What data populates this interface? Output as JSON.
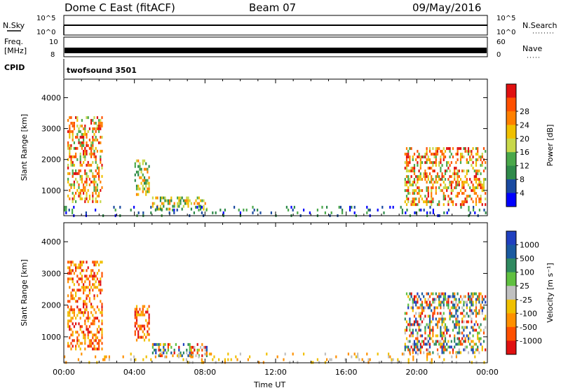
{
  "header": {
    "title": "Dome C East (fitACF)",
    "beam": "Beam 07",
    "date": "09/May/2016"
  },
  "strips": {
    "nsky_label": "N.Sky",
    "nsky_ticks": [
      "10^5",
      "10^0"
    ],
    "nsearch_label": "N.Search",
    "freq_label_1": "Freq.",
    "freq_label_2": "[MHz]",
    "freq_ticks": [
      "10",
      "8"
    ],
    "nave_ticks": [
      "60",
      "0"
    ],
    "nave_label": "Nave",
    "cpid_label": "CPID",
    "cpid_value": "twofsound 3501"
  },
  "chart_data": [
    {
      "type": "heatmap",
      "name": "power",
      "ylabel": "Slant Range [km]",
      "yticks": [
        1000,
        2000,
        3000,
        4000
      ],
      "ylim": [
        180,
        4600
      ],
      "xlim": [
        0,
        24
      ],
      "colorbar_label": "Power [dB]",
      "colorbar_ticks": [
        "4",
        "8",
        "12",
        "16",
        "20",
        "24",
        "28"
      ],
      "colors": [
        "#0000ff",
        "#1a4aa0",
        "#2f8a4a",
        "#4aa84a",
        "#c8d84a",
        "#f0c000",
        "#ff8000",
        "#ff5000",
        "#e01010"
      ],
      "echo_regions": [
        {
          "t": [
            0.2,
            2.2
          ],
          "r": [
            600,
            3400
          ],
          "level": "high"
        },
        {
          "t": [
            4.0,
            4.8
          ],
          "r": [
            900,
            2000
          ],
          "level": "mid"
        },
        {
          "t": [
            5.0,
            8.1
          ],
          "r": [
            400,
            800
          ],
          "level": "mid"
        },
        {
          "t": [
            19.3,
            23.9
          ],
          "r": [
            500,
            2400
          ],
          "level": "high"
        },
        {
          "t": [
            0,
            24
          ],
          "r": [
            180,
            500
          ],
          "level": "low"
        }
      ]
    },
    {
      "type": "heatmap",
      "name": "velocity",
      "xlabel": "Time UT",
      "ylabel": "Slant Range [km]",
      "yticks": [
        1000,
        2000,
        3000,
        4000
      ],
      "ylim": [
        180,
        4600
      ],
      "xlim": [
        0,
        24
      ],
      "xticks": [
        "00:00",
        "04:00",
        "08:00",
        "12:00",
        "16:00",
        "20:00",
        "00:00"
      ],
      "colorbar_label": "Velocity [m s⁻¹]",
      "colorbar_ticks": [
        "1000",
        "500",
        "100",
        "25",
        "-25",
        "-100",
        "-500",
        "-1000"
      ],
      "colors": [
        "#2040c0",
        "#1a5aa0",
        "#2f8a60",
        "#60c040",
        "#c0c0c0",
        "#f0c000",
        "#ff9000",
        "#ff5000",
        "#e01010"
      ],
      "echo_regions": [
        {
          "t": [
            0.2,
            2.2
          ],
          "r": [
            600,
            3400
          ],
          "level": "away"
        },
        {
          "t": [
            4.0,
            4.8
          ],
          "r": [
            900,
            2000
          ],
          "level": "away"
        },
        {
          "t": [
            5.0,
            8.1
          ],
          "r": [
            400,
            800
          ],
          "level": "mixed"
        },
        {
          "t": [
            19.3,
            23.9
          ],
          "r": [
            500,
            2400
          ],
          "level": "mixed"
        },
        {
          "t": [
            0,
            24
          ],
          "r": [
            180,
            500
          ],
          "level": "low"
        }
      ]
    }
  ]
}
